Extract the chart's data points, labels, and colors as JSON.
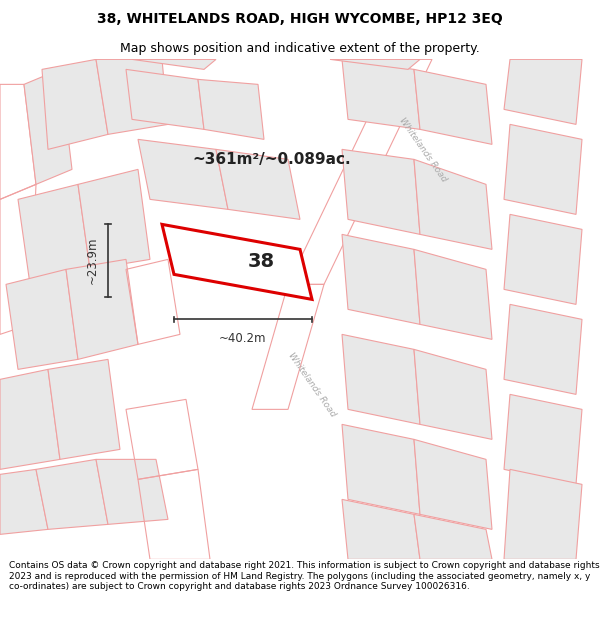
{
  "title_line1": "38, WHITELANDS ROAD, HIGH WYCOMBE, HP12 3EQ",
  "title_line2": "Map shows position and indicative extent of the property.",
  "footer_text": "Contains OS data © Crown copyright and database right 2021. This information is subject to Crown copyright and database rights 2023 and is reproduced with the permission of HM Land Registry. The polygons (including the associated geometry, namely x, y co-ordinates) are subject to Crown copyright and database rights 2023 Ordnance Survey 100026316.",
  "area_label": "~361m²/~0.089ac.",
  "property_number": "38",
  "dim_width": "~40.2m",
  "dim_height": "~23.9m",
  "bg_color": "#ffffff",
  "map_bg": "#ffffff",
  "property_fill": "#ffffff",
  "property_edge": "#dd0000",
  "building_fill": "#e8e8e8",
  "building_edge": "#f0a0a0",
  "plot_edge": "#f0a0a0",
  "road_edge": "#f0a0a0",
  "road_label_color": "#aaaaaa",
  "dim_color": "#333333",
  "title_fontsize": 10,
  "subtitle_fontsize": 9,
  "footer_fontsize": 6.5
}
